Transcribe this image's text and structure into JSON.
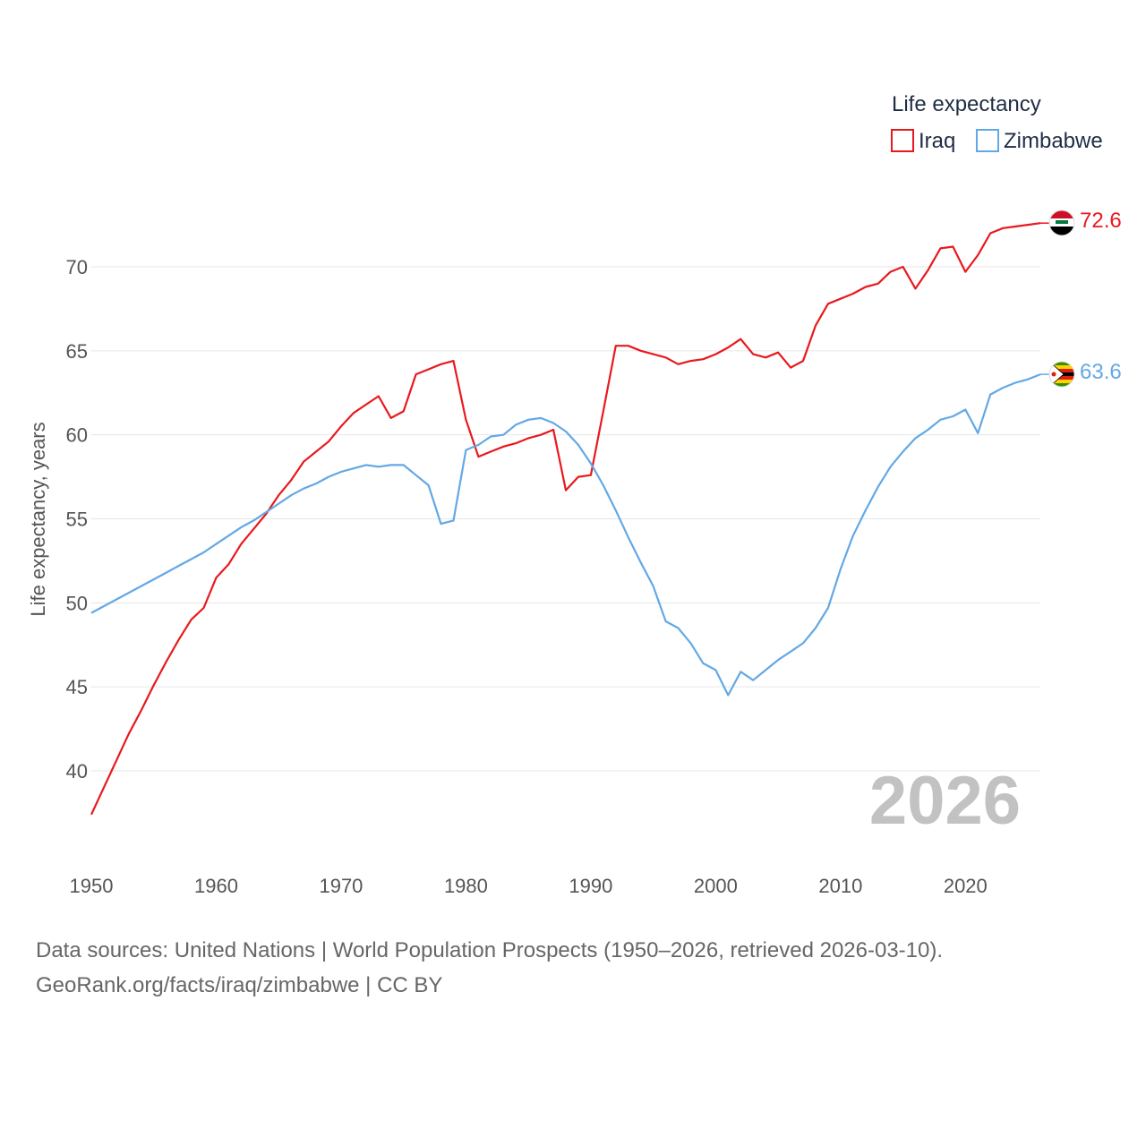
{
  "chart_data": {
    "type": "line",
    "ylabel": "Life expectancy, years",
    "legend_title": "Life expectancy",
    "year_label": "2026",
    "xlim": [
      1950,
      2026
    ],
    "ylim": [
      35,
      73.5
    ],
    "x_ticks": [
      1950,
      1960,
      1970,
      1980,
      1990,
      2000,
      2010,
      2020
    ],
    "y_ticks": [
      40,
      45,
      50,
      55,
      60,
      65,
      70
    ],
    "x": [
      1950,
      1951,
      1952,
      1953,
      1954,
      1955,
      1956,
      1957,
      1958,
      1959,
      1960,
      1961,
      1962,
      1963,
      1964,
      1965,
      1966,
      1967,
      1968,
      1969,
      1970,
      1971,
      1972,
      1973,
      1974,
      1975,
      1976,
      1977,
      1978,
      1979,
      1980,
      1981,
      1982,
      1983,
      1984,
      1985,
      1986,
      1987,
      1988,
      1989,
      1990,
      1991,
      1992,
      1993,
      1994,
      1995,
      1996,
      1997,
      1998,
      1999,
      2000,
      2001,
      2002,
      2003,
      2004,
      2005,
      2006,
      2007,
      2008,
      2009,
      2010,
      2011,
      2012,
      2013,
      2014,
      2015,
      2016,
      2017,
      2018,
      2019,
      2020,
      2021,
      2022,
      2023,
      2024,
      2025,
      2026
    ],
    "series": [
      {
        "name": "Iraq",
        "color": "#e8191e",
        "end_label": "72.6",
        "values": [
          37.4,
          39.0,
          40.6,
          42.2,
          43.6,
          45.1,
          46.5,
          47.8,
          49.0,
          49.7,
          51.5,
          52.3,
          53.5,
          54.4,
          55.3,
          56.4,
          57.3,
          58.4,
          59.0,
          59.6,
          60.5,
          61.3,
          61.8,
          62.3,
          61.0,
          61.4,
          63.6,
          63.9,
          64.2,
          64.4,
          60.9,
          58.7,
          59.0,
          59.3,
          59.5,
          59.8,
          60.0,
          60.3,
          56.7,
          57.5,
          57.6,
          61.4,
          65.3,
          65.3,
          65.0,
          64.8,
          64.6,
          64.2,
          64.4,
          64.5,
          64.8,
          65.2,
          65.7,
          64.8,
          64.6,
          64.9,
          64.0,
          64.4,
          66.5,
          67.8,
          68.1,
          68.4,
          68.8,
          69.0,
          69.7,
          70.0,
          68.7,
          69.8,
          71.1,
          71.2,
          69.7,
          70.7,
          72.0,
          72.3,
          72.4,
          72.5,
          72.6
        ]
      },
      {
        "name": "Zimbabwe",
        "color": "#63a8e6",
        "end_label": "63.6",
        "values": [
          49.4,
          49.8,
          50.2,
          50.6,
          51.0,
          51.4,
          51.8,
          52.2,
          52.6,
          53.0,
          53.5,
          54.0,
          54.5,
          54.9,
          55.4,
          55.9,
          56.4,
          56.8,
          57.1,
          57.5,
          57.8,
          58.0,
          58.2,
          58.1,
          58.2,
          58.2,
          57.6,
          57.0,
          54.7,
          54.9,
          59.1,
          59.4,
          59.9,
          60.0,
          60.6,
          60.9,
          61.0,
          60.7,
          60.2,
          59.4,
          58.3,
          57.0,
          55.5,
          53.9,
          52.4,
          51.0,
          48.9,
          48.5,
          47.6,
          46.4,
          46.0,
          44.5,
          45.9,
          45.4,
          46.0,
          46.6,
          47.1,
          47.6,
          48.5,
          49.7,
          52.0,
          54.0,
          55.5,
          56.9,
          58.1,
          59.0,
          59.8,
          60.3,
          60.9,
          61.1,
          61.5,
          60.1,
          62.4,
          62.8,
          63.1,
          63.3,
          63.6
        ]
      }
    ]
  },
  "source": {
    "line1": "Data sources: United Nations | World Population Prospects (1950–2026, retrieved 2026-03-10).",
    "line2": "GeoRank.org/facts/iraq/zimbabwe | CC BY"
  }
}
